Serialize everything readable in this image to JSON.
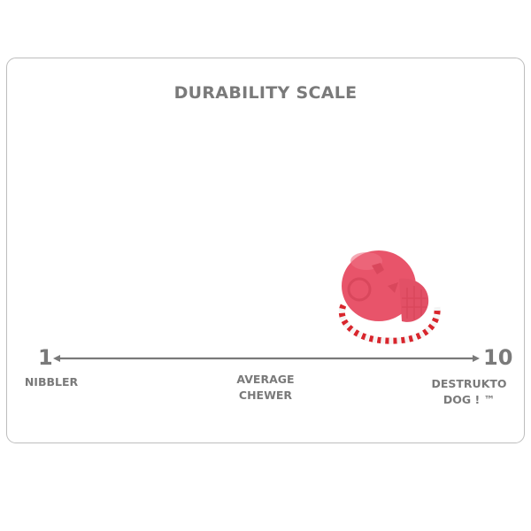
{
  "title": "DURABILITY SCALE",
  "scale": {
    "min_value": "1",
    "max_value": "10",
    "min_label": "NIBBLER",
    "mid_label_line1": "AVERAGE",
    "mid_label_line2": "CHEWER",
    "max_label_line1": "DESTRUKTO",
    "max_label_line2": "DOG ! ™",
    "rating": 10
  },
  "colors": {
    "text": "#7a7a7a",
    "toy": "#e8546a",
    "rope_red": "#d8252c"
  },
  "product": {
    "icon": "skull-chew-toy-with-rope"
  }
}
